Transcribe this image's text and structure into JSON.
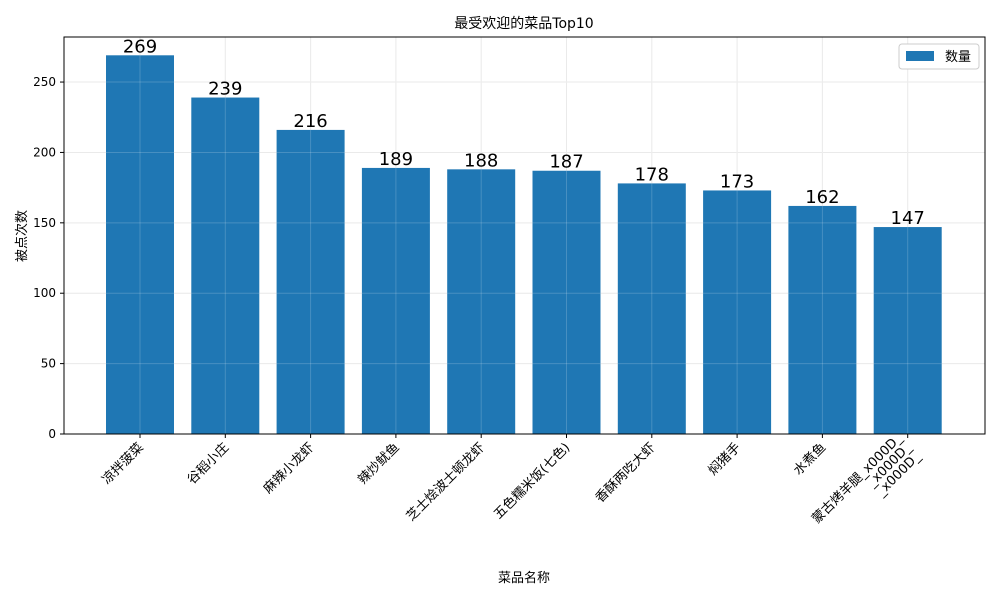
{
  "chart_data": {
    "type": "bar",
    "title": "最受欢迎的菜品Top10",
    "xlabel": "菜品名称",
    "ylabel": "被点次数",
    "categories": [
      "凉拌菠菜",
      "谷稻小庄",
      "麻辣小龙虾",
      "辣炒鱿鱼",
      "芝士烩波士顿龙虾",
      "五色糯米饭(七色)",
      "香酥两吃大虾",
      "焖猪手",
      "水煮鱼",
      "蒙古烤羊腿_x000D_\n_x000D_\n_x000D_"
    ],
    "series": [
      {
        "name": "数量",
        "values": [
          269,
          239,
          216,
          189,
          188,
          187,
          178,
          173,
          162,
          147
        ]
      }
    ],
    "ylim": [
      0,
      282
    ],
    "yticks": [
      0,
      50,
      100,
      150,
      200,
      250
    ],
    "grid": true,
    "legend": "top-right",
    "colors": {
      "bar": "#1f77b4",
      "grid": "#e6e6e6",
      "axis": "#000000"
    }
  }
}
